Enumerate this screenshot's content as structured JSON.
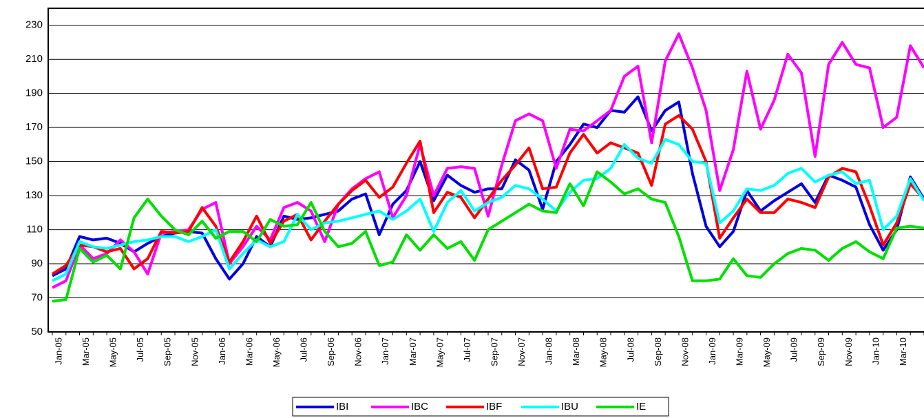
{
  "chart_data": {
    "type": "line",
    "categories": [
      "Jan-05",
      null,
      "Mar-05",
      null,
      "May-05",
      null,
      "Jul-05",
      null,
      "Sep-05",
      null,
      "Nov-05",
      null,
      "Jan-06",
      null,
      "Mar-06",
      null,
      "May-06",
      null,
      "Jul-06",
      null,
      "Sep-06",
      null,
      "Nov-06",
      null,
      "Jan-07",
      null,
      "Mar-07",
      null,
      "May-07",
      null,
      "Jul-07",
      null,
      "Sep-07",
      null,
      "Nov-07",
      null,
      "Jan-08",
      null,
      "Mar-08",
      null,
      "May-08",
      null,
      "Jul-08",
      null,
      "Sep-08",
      null,
      "Nov-08",
      null,
      "Jan-09",
      null,
      "Mar-09",
      null,
      "May-09",
      null,
      "Jul-09",
      null,
      "Sep-09",
      null,
      "Nov-09",
      null,
      "Jan-10",
      null,
      "Mar-10",
      null,
      null
    ],
    "series": [
      {
        "name": "IBI",
        "color": "#0000e0",
        "values": [
          83,
          87,
          106,
          104,
          105,
          102,
          97,
          102,
          106,
          108,
          109,
          108,
          93,
          81,
          90,
          106,
          100,
          118,
          116,
          117,
          119,
          121,
          128,
          131,
          107,
          125,
          133,
          150,
          127,
          142,
          136,
          132,
          134,
          134,
          151,
          145,
          122,
          150,
          160,
          172,
          170,
          180,
          179,
          188,
          168,
          180,
          185,
          143,
          112,
          100,
          109,
          133,
          121,
          127,
          132,
          137,
          126,
          142,
          139,
          135,
          113,
          98,
          110,
          141,
          128
        ]
      },
      {
        "name": "IBC",
        "color": "#ff00ff",
        "values": [
          76,
          80,
          101,
          93,
          96,
          104,
          97,
          84,
          108,
          109,
          110,
          122,
          126,
          90,
          100,
          112,
          104,
          123,
          126,
          121,
          103,
          125,
          134,
          140,
          144,
          117,
          130,
          160,
          130,
          146,
          147,
          146,
          118,
          148,
          174,
          178,
          174,
          146,
          169,
          168,
          174,
          180,
          200,
          206,
          161,
          209,
          225,
          205,
          180,
          133,
          157,
          203,
          169,
          186,
          213,
          202,
          153,
          207,
          220,
          207,
          205,
          170,
          176,
          218,
          205
        ]
      },
      {
        "name": "IBF",
        "color": "#ff0000",
        "values": [
          84,
          89,
          101,
          100,
          97,
          99,
          87,
          93,
          109,
          108,
          109,
          123,
          112,
          91,
          103,
          118,
          102,
          115,
          119,
          104,
          115,
          125,
          133,
          139,
          129,
          135,
          149,
          162,
          120,
          132,
          129,
          117,
          128,
          139,
          148,
          158,
          134,
          135,
          155,
          166,
          155,
          161,
          158,
          155,
          136,
          172,
          177,
          169,
          150,
          105,
          117,
          128,
          120,
          120,
          128,
          126,
          123,
          141,
          146,
          144,
          124,
          101,
          114,
          137,
          128
        ]
      },
      {
        "name": "IBU",
        "color": "#00ffff",
        "values": [
          80,
          84,
          103,
          100,
          99,
          101,
          103,
          104,
          106,
          106,
          103,
          106,
          110,
          87,
          96,
          104,
          100,
          103,
          119,
          110,
          114,
          115,
          117,
          119,
          121,
          116,
          121,
          128,
          109,
          126,
          133,
          121,
          126,
          129,
          136,
          134,
          128,
          121,
          132,
          139,
          140,
          146,
          160,
          152,
          149,
          163,
          160,
          150,
          149,
          114,
          121,
          134,
          133,
          136,
          143,
          146,
          138,
          142,
          144,
          137,
          139,
          110,
          118,
          140,
          127
        ]
      },
      {
        "name": "IE",
        "color": "#00e000",
        "values": [
          68,
          69,
          99,
          91,
          95,
          87,
          117,
          128,
          118,
          110,
          107,
          115,
          105,
          109,
          109,
          103,
          116,
          112,
          113,
          126,
          109,
          100,
          102,
          109,
          89,
          91,
          107,
          98,
          107,
          99,
          103,
          92,
          110,
          115,
          120,
          125,
          121,
          120,
          137,
          124,
          144,
          138,
          131,
          134,
          128,
          126,
          106,
          80,
          80,
          81,
          93,
          83,
          82,
          90,
          96,
          99,
          98,
          92,
          99,
          103,
          97,
          93,
          111,
          112,
          111
        ]
      }
    ],
    "ylim": [
      50,
      240
    ],
    "yticks": [
      50,
      70,
      90,
      110,
      130,
      150,
      170,
      190,
      210,
      230
    ],
    "grid": true,
    "legend": "bottom"
  }
}
